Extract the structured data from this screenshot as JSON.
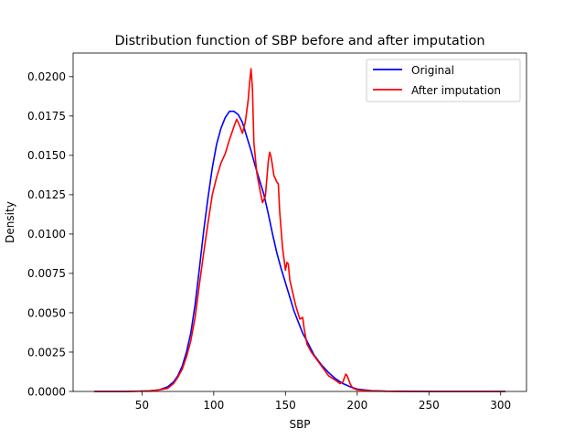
{
  "chart_data": {
    "type": "line",
    "title": "Distribution function of SBP before and after imputation",
    "xlabel": "SBP",
    "ylabel": "Density",
    "xlim": [
      2,
      318
    ],
    "ylim": [
      0,
      0.0215
    ],
    "xticks": [
      50,
      100,
      150,
      200,
      250,
      300
    ],
    "yticks": [
      0.0,
      0.0025,
      0.005,
      0.0075,
      0.01,
      0.0125,
      0.015,
      0.0175,
      0.02
    ],
    "ytick_labels": [
      "0.0000",
      "0.0025",
      "0.0050",
      "0.0075",
      "0.0100",
      "0.0125",
      "0.0150",
      "0.0175",
      "0.0200"
    ],
    "grid": false,
    "legend_position": "top-right",
    "series": [
      {
        "name": "Original",
        "color": "#0000ff",
        "x": [
          17,
          40,
          55,
          62,
          68,
          72,
          75,
          78,
          81,
          84,
          87,
          90,
          93,
          96,
          99,
          102,
          105,
          108,
          111,
          114,
          117,
          120,
          123,
          126,
          129,
          132,
          135,
          138,
          141,
          144,
          147,
          150,
          153,
          156,
          159,
          162,
          165,
          170,
          175,
          180,
          185,
          190,
          195,
          200,
          210,
          220,
          230,
          250,
          270,
          303
        ],
        "y": [
          0.0,
          0.0,
          3e-05,
          0.0001,
          0.0003,
          0.0006,
          0.001,
          0.0016,
          0.0025,
          0.0037,
          0.0055,
          0.0078,
          0.0102,
          0.0123,
          0.0142,
          0.0157,
          0.0167,
          0.0174,
          0.0178,
          0.0178,
          0.0176,
          0.0171,
          0.0162,
          0.0153,
          0.0143,
          0.0134,
          0.0125,
          0.0113,
          0.01,
          0.0088,
          0.0078,
          0.0069,
          0.006,
          0.0051,
          0.0044,
          0.0037,
          0.0032,
          0.0023,
          0.0017,
          0.0012,
          0.0008,
          0.0005,
          0.0003,
          0.00015,
          5e-05,
          2e-05,
          1e-05,
          0.0,
          0.0,
          0.0
        ]
      },
      {
        "name": "After imputation",
        "color": "#ff0000",
        "x": [
          17,
          40,
          55,
          62,
          68,
          72,
          75,
          78,
          81,
          84,
          87,
          90,
          93,
          96,
          99,
          102,
          105,
          108,
          111,
          114,
          116,
          118,
          120,
          122,
          124,
          125,
          126,
          127,
          128,
          130,
          132,
          134,
          136,
          138,
          139,
          140,
          142,
          144,
          145,
          146,
          148,
          150,
          151,
          152,
          153,
          155,
          157,
          160,
          162,
          163,
          165,
          168,
          172,
          176,
          180,
          185,
          188,
          190,
          192,
          193,
          195,
          197,
          200,
          210,
          220,
          240,
          270,
          303
        ],
        "y": [
          0.0,
          0.0,
          3e-05,
          0.0001,
          0.0002,
          0.0005,
          0.0009,
          0.0014,
          0.0022,
          0.0032,
          0.0047,
          0.0068,
          0.0088,
          0.0107,
          0.0125,
          0.0136,
          0.0145,
          0.0151,
          0.016,
          0.0168,
          0.0173,
          0.0169,
          0.0164,
          0.0171,
          0.0185,
          0.0196,
          0.0205,
          0.0192,
          0.0158,
          0.0139,
          0.0129,
          0.012,
          0.0124,
          0.0146,
          0.0152,
          0.0149,
          0.0137,
          0.0133,
          0.0132,
          0.0114,
          0.0091,
          0.0077,
          0.0082,
          0.0081,
          0.0071,
          0.0063,
          0.0055,
          0.0046,
          0.0047,
          0.004,
          0.003,
          0.0025,
          0.002,
          0.0015,
          0.001,
          0.0007,
          0.0005,
          0.0006,
          0.0011,
          0.001,
          0.0005,
          0.0002,
          0.0001,
          3e-05,
          1e-05,
          0.0,
          0.0,
          0.0
        ]
      }
    ]
  }
}
